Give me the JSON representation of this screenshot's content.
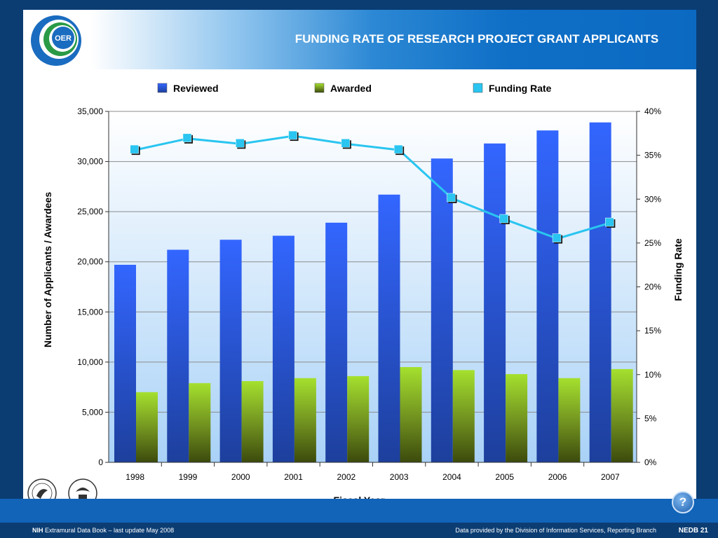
{
  "header": {
    "title": "FUNDING RATE OF RESEARCH PROJECT GRANT APPLICANTS",
    "logo_text": "OER"
  },
  "footer": {
    "left_bold": "NIH",
    "left_text": " Extramural Data Book – last update May 2008",
    "right_text": "Data provided by the Division of Information Services, Reporting Branch",
    "page": "NEDB 21"
  },
  "help_label": "?",
  "seals": {
    "hhs_icon": "hhs-seal-icon",
    "nih_text": "NATIONAL INSTITUTES OF HEALTH"
  },
  "chart_data": {
    "type": "bar",
    "categories": [
      "1998",
      "1999",
      "2000",
      "2001",
      "2002",
      "2003",
      "2004",
      "2005",
      "2006",
      "2007"
    ],
    "series": [
      {
        "name": "Reviewed",
        "type": "bar",
        "axis": "left",
        "color": "#2f5fe6",
        "values": [
          19700,
          21200,
          22200,
          22600,
          23900,
          26700,
          30300,
          31800,
          33100,
          33900
        ]
      },
      {
        "name": "Awarded",
        "type": "bar",
        "axis": "left",
        "color": "#8cc63f",
        "values": [
          7000,
          7900,
          8100,
          8400,
          8600,
          9500,
          9200,
          8800,
          8400,
          9300
        ]
      },
      {
        "name": "Funding Rate",
        "type": "line",
        "axis": "right",
        "color": "#2ac5f0",
        "values": [
          35.6,
          36.9,
          36.3,
          37.2,
          36.3,
          35.6,
          30.1,
          27.7,
          25.5,
          27.3
        ]
      }
    ],
    "xlabel": "Fiscal Year",
    "ylabel": "Number of Applicants / Awardees",
    "ylabel_right": "Funding Rate",
    "ylim": [
      0,
      35000
    ],
    "ylim_right": [
      0,
      40
    ],
    "yticks": [
      "0",
      "5,000",
      "10,000",
      "15,000",
      "20,000",
      "25,000",
      "30,000",
      "35,000"
    ],
    "yticks_right": [
      "0%",
      "5%",
      "10%",
      "15%",
      "20%",
      "25%",
      "30%",
      "35%",
      "40%"
    ],
    "grid": true,
    "legend_position": "top"
  }
}
